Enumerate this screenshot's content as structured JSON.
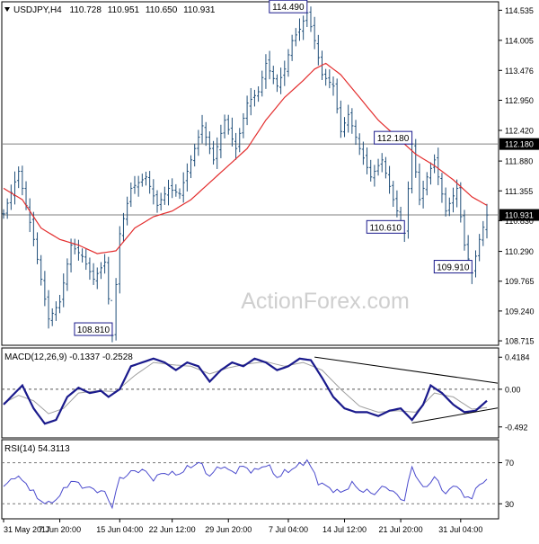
{
  "colors": {
    "price_bars": "#1f4e79",
    "moving_average": "#e32d2d",
    "macd_line": "#1a1a8c",
    "macd_signal": "#a0a0a0",
    "rsi_line": "#4a4acd",
    "level_line": "#808080",
    "callout_border": "#1a1a8c",
    "watermark": "#cfcfcf"
  },
  "chart_data": [
    {
      "type": "ohlc",
      "panel": "price",
      "title": "USDJPY,H4",
      "ohlc_readout": {
        "open": "110.728",
        "high": "110.951",
        "low": "110.650",
        "close": "110.931"
      },
      "watermark": "ActionForex.com",
      "y_ticks": [
        "114.535",
        "114.005",
        "113.476",
        "112.950",
        "112.420",
        "111.880",
        "111.355",
        "110.830",
        "110.290",
        "109.765",
        "109.240",
        "108.715"
      ],
      "ylim": [
        108.7,
        114.62
      ],
      "horizontal_levels": [
        {
          "value": 112.18,
          "label": "112.180"
        },
        {
          "value": 110.931,
          "label": "110.931"
        }
      ],
      "callouts": [
        {
          "text": "114.490",
          "value": 114.49,
          "bar_index": 81
        },
        {
          "text": "112.180",
          "value": 112.18,
          "bar_index": 109
        },
        {
          "text": "110.610",
          "value": 110.61,
          "bar_index": 107
        },
        {
          "text": "109.910",
          "value": 109.91,
          "bar_index": 125
        },
        {
          "text": "108.810",
          "value": 108.81,
          "bar_index": 29
        }
      ],
      "anchors": [
        [
          0,
          110.95
        ],
        [
          4,
          111.7
        ],
        [
          8,
          110.5
        ],
        [
          12,
          109.1
        ],
        [
          15,
          109.4
        ],
        [
          18,
          110.4
        ],
        [
          21,
          110.2
        ],
        [
          24,
          109.8
        ],
        [
          27,
          110.1
        ],
        [
          29,
          108.81
        ],
        [
          31,
          110.6
        ],
        [
          34,
          111.4
        ],
        [
          38,
          111.6
        ],
        [
          41,
          111.1
        ],
        [
          44,
          111.4
        ],
        [
          47,
          111.3
        ],
        [
          50,
          111.9
        ],
        [
          53,
          112.5
        ],
        [
          56,
          111.9
        ],
        [
          59,
          112.6
        ],
        [
          62,
          112.1
        ],
        [
          65,
          112.9
        ],
        [
          68,
          113.1
        ],
        [
          70,
          113.6
        ],
        [
          73,
          113.2
        ],
        [
          75,
          113.5
        ],
        [
          77,
          114.0
        ],
        [
          79,
          114.2
        ],
        [
          81,
          114.49
        ],
        [
          83,
          114.0
        ],
        [
          85,
          113.4
        ],
        [
          88,
          113.2
        ],
        [
          90,
          112.4
        ],
        [
          92,
          112.7
        ],
        [
          95,
          112.1
        ],
        [
          98,
          111.6
        ],
        [
          101,
          111.9
        ],
        [
          104,
          111.2
        ],
        [
          107,
          110.61
        ],
        [
          109,
          112.18
        ],
        [
          111,
          111.2
        ],
        [
          113,
          111.6
        ],
        [
          115,
          111.9
        ],
        [
          118,
          111.0
        ],
        [
          121,
          111.4
        ],
        [
          123,
          110.4
        ],
        [
          125,
          109.91
        ],
        [
          127,
          110.5
        ],
        [
          129,
          110.93
        ]
      ],
      "moving_average_anchors": [
        [
          0,
          111.4
        ],
        [
          5,
          111.2
        ],
        [
          10,
          110.7
        ],
        [
          15,
          110.5
        ],
        [
          20,
          110.4
        ],
        [
          25,
          110.25
        ],
        [
          30,
          110.3
        ],
        [
          35,
          110.7
        ],
        [
          40,
          110.9
        ],
        [
          45,
          111.0
        ],
        [
          50,
          111.2
        ],
        [
          55,
          111.5
        ],
        [
          60,
          111.8
        ],
        [
          65,
          112.1
        ],
        [
          70,
          112.6
        ],
        [
          75,
          113.0
        ],
        [
          80,
          113.3
        ],
        [
          83,
          113.5
        ],
        [
          86,
          113.6
        ],
        [
          90,
          113.4
        ],
        [
          95,
          113.0
        ],
        [
          100,
          112.6
        ],
        [
          105,
          112.3
        ],
        [
          110,
          112.0
        ],
        [
          115,
          111.8
        ],
        [
          120,
          111.55
        ],
        [
          125,
          111.25
        ],
        [
          129,
          111.1
        ]
      ]
    },
    {
      "type": "line",
      "panel": "macd",
      "title": "MACD(12,26,9) -0.1337 -0.2528",
      "y_ticks": [
        "0.4184",
        "0.00",
        "-0.492"
      ],
      "ylim": [
        -0.6,
        0.48
      ],
      "zero_line": 0,
      "macd_anchors": [
        [
          0,
          -0.2
        ],
        [
          3,
          -0.05
        ],
        [
          5,
          0.05
        ],
        [
          8,
          -0.25
        ],
        [
          11,
          -0.45
        ],
        [
          14,
          -0.4
        ],
        [
          17,
          -0.1
        ],
        [
          20,
          0.02
        ],
        [
          23,
          -0.05
        ],
        [
          26,
          -0.02
        ],
        [
          28,
          -0.1
        ],
        [
          31,
          0.0
        ],
        [
          34,
          0.3
        ],
        [
          37,
          0.35
        ],
        [
          40,
          0.4
        ],
        [
          43,
          0.35
        ],
        [
          46,
          0.25
        ],
        [
          49,
          0.35
        ],
        [
          52,
          0.3
        ],
        [
          55,
          0.1
        ],
        [
          58,
          0.25
        ],
        [
          61,
          0.35
        ],
        [
          64,
          0.3
        ],
        [
          67,
          0.4
        ],
        [
          70,
          0.35
        ],
        [
          73,
          0.25
        ],
        [
          76,
          0.3
        ],
        [
          79,
          0.4
        ],
        [
          82,
          0.38
        ],
        [
          85,
          0.15
        ],
        [
          88,
          -0.1
        ],
        [
          91,
          -0.25
        ],
        [
          94,
          -0.3
        ],
        [
          97,
          -0.3
        ],
        [
          100,
          -0.35
        ],
        [
          103,
          -0.28
        ],
        [
          106,
          -0.25
        ],
        [
          109,
          -0.4
        ],
        [
          112,
          -0.2
        ],
        [
          114,
          0.05
        ],
        [
          117,
          -0.05
        ],
        [
          120,
          -0.2
        ],
        [
          123,
          -0.3
        ],
        [
          126,
          -0.28
        ],
        [
          129,
          -0.15
        ]
      ],
      "signal_anchors": [
        [
          0,
          -0.18
        ],
        [
          4,
          -0.08
        ],
        [
          8,
          -0.15
        ],
        [
          12,
          -0.32
        ],
        [
          16,
          -0.25
        ],
        [
          20,
          -0.05
        ],
        [
          25,
          -0.02
        ],
        [
          30,
          -0.03
        ],
        [
          35,
          0.18
        ],
        [
          40,
          0.35
        ],
        [
          45,
          0.32
        ],
        [
          50,
          0.3
        ],
        [
          55,
          0.2
        ],
        [
          60,
          0.28
        ],
        [
          65,
          0.33
        ],
        [
          70,
          0.36
        ],
        [
          75,
          0.3
        ],
        [
          80,
          0.35
        ],
        [
          85,
          0.25
        ],
        [
          90,
          0.0
        ],
        [
          95,
          -0.22
        ],
        [
          100,
          -0.3
        ],
        [
          105,
          -0.28
        ],
        [
          110,
          -0.3
        ],
        [
          115,
          -0.05
        ],
        [
          120,
          -0.1
        ],
        [
          125,
          -0.26
        ],
        [
          129,
          -0.24
        ]
      ],
      "trendlines": [
        {
          "from": [
            83,
            0.42
          ],
          "to": [
            129,
            0.1
          ]
        },
        {
          "from": [
            109,
            -0.44
          ],
          "to": [
            129,
            -0.27
          ]
        }
      ]
    },
    {
      "type": "line",
      "panel": "rsi",
      "title": "RSI(14) 54.3113",
      "y_ticks": [
        "70",
        "30"
      ],
      "levels": [
        70,
        30
      ],
      "ylim": [
        18,
        88
      ],
      "anchors": [
        [
          0,
          45
        ],
        [
          3,
          58
        ],
        [
          6,
          50
        ],
        [
          9,
          35
        ],
        [
          12,
          30
        ],
        [
          15,
          38
        ],
        [
          18,
          52
        ],
        [
          21,
          48
        ],
        [
          24,
          44
        ],
        [
          27,
          40
        ],
        [
          29,
          28
        ],
        [
          31,
          55
        ],
        [
          34,
          60
        ],
        [
          37,
          63
        ],
        [
          40,
          55
        ],
        [
          43,
          60
        ],
        [
          46,
          58
        ],
        [
          49,
          65
        ],
        [
          52,
          70
        ],
        [
          55,
          57
        ],
        [
          58,
          68
        ],
        [
          61,
          60
        ],
        [
          64,
          66
        ],
        [
          67,
          62
        ],
        [
          70,
          68
        ],
        [
          73,
          56
        ],
        [
          76,
          63
        ],
        [
          79,
          67
        ],
        [
          81,
          72
        ],
        [
          84,
          52
        ],
        [
          87,
          45
        ],
        [
          90,
          40
        ],
        [
          93,
          50
        ],
        [
          96,
          42
        ],
        [
          99,
          40
        ],
        [
          102,
          48
        ],
        [
          105,
          38
        ],
        [
          107,
          33
        ],
        [
          109,
          66
        ],
        [
          112,
          45
        ],
        [
          115,
          55
        ],
        [
          118,
          40
        ],
        [
          121,
          50
        ],
        [
          123,
          35
        ],
        [
          125,
          37
        ],
        [
          127,
          48
        ],
        [
          129,
          54
        ]
      ]
    }
  ],
  "x_axis": {
    "bar_count": 130,
    "labels": [
      {
        "bar_index": 0,
        "text": "31 May 2017"
      },
      {
        "bar_index": 15,
        "text": "7 Jun 20:00"
      },
      {
        "bar_index": 31,
        "text": "15 Jun 04:00"
      },
      {
        "bar_index": 45,
        "text": "22 Jun 12:00"
      },
      {
        "bar_index": 60,
        "text": "29 Jun 20:00"
      },
      {
        "bar_index": 76,
        "text": "7 Jul 04:00"
      },
      {
        "bar_index": 91,
        "text": "14 Jul 12:00"
      },
      {
        "bar_index": 106,
        "text": "21 Jul 20:00"
      },
      {
        "bar_index": 122,
        "text": "31 Jul 04:00"
      }
    ]
  }
}
